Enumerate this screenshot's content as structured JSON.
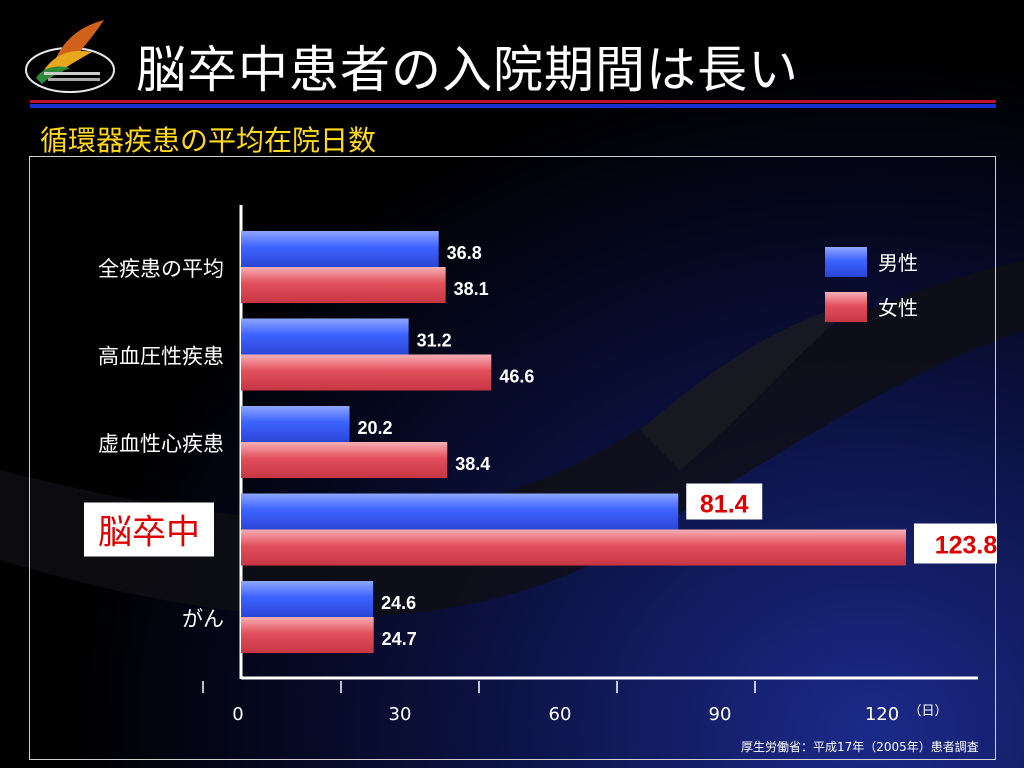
{
  "slide": {
    "title": "脳卒中患者の入院期間は長い",
    "subtitle": "循環器疾患の平均在院日数",
    "source": "厚生労働省：平成17年（2005年）患者調査"
  },
  "colors": {
    "title_rule_red": "#c0102a",
    "title_rule_blue": "#1a2fd0",
    "subtitle": "#ffd81a",
    "male_bar": "#3d63ff",
    "female_bar": "#e2505c",
    "highlight_text": "#e00000"
  },
  "chart_data": {
    "type": "bar",
    "orientation": "horizontal",
    "categories": [
      "全疾患の平均",
      "高血圧性疾患",
      "虚血性心疾患",
      "脳卒中",
      "がん"
    ],
    "highlight_category": "脳卒中",
    "series": [
      {
        "name": "男性",
        "color": "#3d63ff",
        "values": [
          36.8,
          31.2,
          20.2,
          81.4,
          24.6
        ]
      },
      {
        "name": "女性",
        "color": "#e2505c",
        "values": [
          38.1,
          46.6,
          38.4,
          123.8,
          24.7
        ]
      }
    ],
    "value_labels": [
      [
        "36.8",
        "38.1"
      ],
      [
        "31.2",
        "46.6"
      ],
      [
        "20.2",
        "38.4"
      ],
      [
        "81.4",
        "123.8"
      ],
      [
        "24.6",
        "24.7"
      ]
    ],
    "x_ticks": [
      "0",
      "30",
      "60",
      "90",
      "120"
    ],
    "x_unit": "（日）",
    "xlim": [
      0,
      120
    ],
    "legend": [
      "男性",
      "女性"
    ],
    "legend_position": "top-right",
    "grid": false
  }
}
